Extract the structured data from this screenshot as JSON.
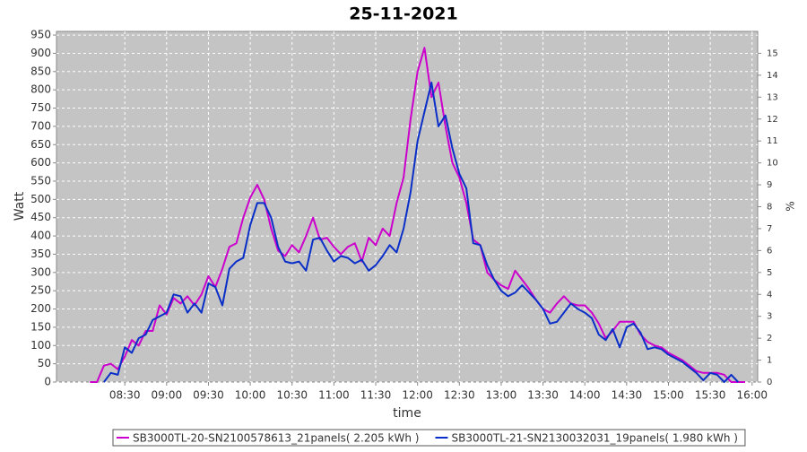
{
  "chart_data": {
    "type": "line",
    "title": "25-11-2021",
    "x_label": "time",
    "y_label": "Watt",
    "y2_label": "%",
    "xlim": [
      "07:41",
      "16:04"
    ],
    "xticks": [
      "08:30",
      "09:00",
      "09:30",
      "10:00",
      "10:30",
      "11:00",
      "11:30",
      "12:00",
      "12:30",
      "13:00",
      "13:30",
      "14:00",
      "14:30",
      "15:00",
      "15:30",
      "16:00"
    ],
    "ylim": [
      0,
      960
    ],
    "yticks": [
      0,
      50,
      100,
      150,
      200,
      250,
      300,
      350,
      400,
      450,
      500,
      550,
      600,
      650,
      700,
      750,
      800,
      850,
      900,
      950
    ],
    "y2lim": [
      0,
      16
    ],
    "y2ticks": [
      0,
      1,
      2,
      3,
      4,
      5,
      6,
      7,
      8,
      9,
      10,
      11,
      12,
      13,
      14,
      15
    ],
    "grid": true,
    "legend": "bottom",
    "series": [
      {
        "name": "SB3000TL-20-SN2100578613_21panels( 2.205 kWh )",
        "color": "#cc00cc",
        "x": [
          "08:05",
          "08:10",
          "08:15",
          "08:20",
          "08:25",
          "08:30",
          "08:35",
          "08:40",
          "08:45",
          "08:50",
          "08:55",
          "09:00",
          "09:05",
          "09:10",
          "09:15",
          "09:20",
          "09:25",
          "09:30",
          "09:35",
          "09:40",
          "09:45",
          "09:50",
          "09:55",
          "10:00",
          "10:05",
          "10:10",
          "10:15",
          "10:20",
          "10:25",
          "10:30",
          "10:35",
          "10:40",
          "10:45",
          "10:50",
          "10:55",
          "11:00",
          "11:05",
          "11:10",
          "11:15",
          "11:20",
          "11:25",
          "11:30",
          "11:35",
          "11:40",
          "11:45",
          "11:50",
          "11:55",
          "12:00",
          "12:05",
          "12:10",
          "12:15",
          "12:20",
          "12:25",
          "12:30",
          "12:35",
          "12:40",
          "12:45",
          "12:50",
          "12:55",
          "13:00",
          "13:05",
          "13:10",
          "13:15",
          "13:20",
          "13:25",
          "13:30",
          "13:35",
          "13:40",
          "13:45",
          "13:50",
          "13:55",
          "14:00",
          "14:05",
          "14:10",
          "14:15",
          "14:20",
          "14:25",
          "14:30",
          "14:35",
          "14:40",
          "14:45",
          "14:50",
          "14:55",
          "15:00",
          "15:05",
          "15:10",
          "15:15",
          "15:20",
          "15:25",
          "15:30",
          "15:35",
          "15:40",
          "15:45",
          "15:50",
          "15:55"
        ],
        "values": [
          0,
          0,
          45,
          50,
          35,
          70,
          115,
          100,
          140,
          140,
          210,
          185,
          230,
          215,
          235,
          210,
          240,
          290,
          260,
          310,
          370,
          380,
          450,
          505,
          540,
          500,
          420,
          360,
          345,
          375,
          355,
          400,
          450,
          390,
          395,
          370,
          350,
          370,
          380,
          330,
          395,
          375,
          420,
          400,
          490,
          560,
          720,
          850,
          915,
          780,
          820,
          700,
          600,
          560,
          490,
          390,
          375,
          300,
          280,
          265,
          255,
          305,
          280,
          255,
          225,
          200,
          190,
          215,
          235,
          215,
          210,
          210,
          190,
          160,
          120,
          140,
          165,
          165,
          165,
          130,
          110,
          100,
          95,
          80,
          70,
          60,
          45,
          30,
          25,
          25,
          25,
          20,
          0,
          0,
          0
        ]
      },
      {
        "name": "SB3000TL-21-SN2130032031_19panels( 1.980 kWh )",
        "color": "#0a2fc8",
        "x": [
          "08:15",
          "08:20",
          "08:25",
          "08:30",
          "08:35",
          "08:40",
          "08:45",
          "08:50",
          "08:55",
          "09:00",
          "09:05",
          "09:10",
          "09:15",
          "09:20",
          "09:25",
          "09:30",
          "09:35",
          "09:40",
          "09:45",
          "09:50",
          "09:55",
          "10:00",
          "10:05",
          "10:10",
          "10:15",
          "10:20",
          "10:25",
          "10:30",
          "10:35",
          "10:40",
          "10:45",
          "10:50",
          "10:55",
          "11:00",
          "11:05",
          "11:10",
          "11:15",
          "11:20",
          "11:25",
          "11:30",
          "11:35",
          "11:40",
          "11:45",
          "11:50",
          "11:55",
          "12:00",
          "12:05",
          "12:10",
          "12:15",
          "12:20",
          "12:25",
          "12:30",
          "12:35",
          "12:40",
          "12:45",
          "12:50",
          "12:55",
          "13:00",
          "13:05",
          "13:10",
          "13:15",
          "13:20",
          "13:25",
          "13:30",
          "13:35",
          "13:40",
          "13:45",
          "13:50",
          "13:55",
          "14:00",
          "14:05",
          "14:10",
          "14:15",
          "14:20",
          "14:25",
          "14:30",
          "14:35",
          "14:40",
          "14:45",
          "14:50",
          "14:55",
          "15:00",
          "15:05",
          "15:10",
          "15:15",
          "15:20",
          "15:25",
          "15:30",
          "15:35",
          "15:40",
          "15:45",
          "15:50"
        ],
        "values": [
          0,
          25,
          20,
          95,
          80,
          120,
          130,
          170,
          180,
          190,
          240,
          235,
          190,
          215,
          190,
          270,
          260,
          210,
          310,
          330,
          340,
          430,
          490,
          490,
          450,
          370,
          330,
          325,
          330,
          305,
          390,
          395,
          360,
          330,
          345,
          340,
          325,
          335,
          305,
          320,
          345,
          375,
          355,
          420,
          520,
          660,
          740,
          820,
          700,
          730,
          640,
          570,
          530,
          380,
          375,
          320,
          280,
          250,
          235,
          245,
          265,
          245,
          225,
          200,
          160,
          165,
          190,
          215,
          200,
          190,
          175,
          130,
          115,
          145,
          95,
          150,
          160,
          135,
          90,
          95,
          90,
          75,
          65,
          55,
          40,
          25,
          5,
          25,
          20,
          0,
          20,
          0
        ]
      }
    ]
  }
}
